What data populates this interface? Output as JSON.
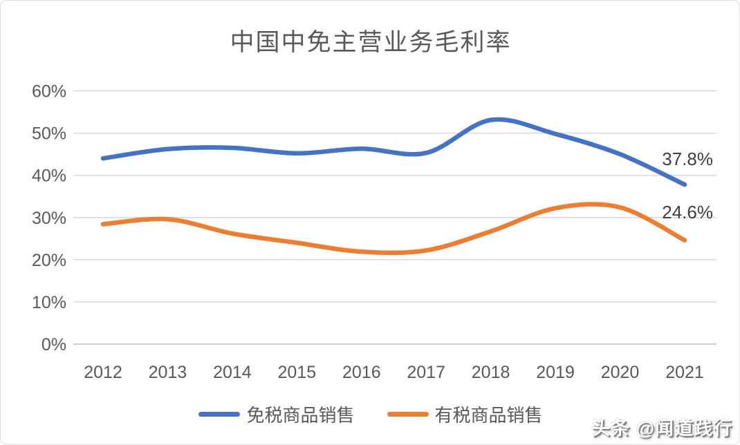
{
  "watermark": "头条 @闻道践行",
  "chart_data": {
    "type": "line",
    "title": "中国中免主营业务毛利率",
    "x": [
      "2012",
      "2013",
      "2014",
      "2015",
      "2016",
      "2017",
      "2018",
      "2019",
      "2020",
      "2021"
    ],
    "series": [
      {
        "name": "免税商品销售",
        "color": "#4472C4",
        "values": [
          44.0,
          46.2,
          46.5,
          45.2,
          46.3,
          45.3,
          53.1,
          49.8,
          45.0,
          37.8
        ],
        "end_label": "37.8%"
      },
      {
        "name": "有税商品销售",
        "color": "#ED7D31",
        "values": [
          28.4,
          29.6,
          26.2,
          24.0,
          21.9,
          22.2,
          26.7,
          32.2,
          32.4,
          24.6
        ],
        "end_label": "24.6%"
      }
    ],
    "ylim": [
      0,
      60
    ],
    "y_tick_step": 10,
    "y_tick_labels": [
      "0%",
      "10%",
      "20%",
      "30%",
      "40%",
      "50%",
      "60%"
    ],
    "grid": true,
    "legend_position": "bottom",
    "smoothed": true,
    "grid_color": "#D9D9D9",
    "text_color": "#595959"
  }
}
